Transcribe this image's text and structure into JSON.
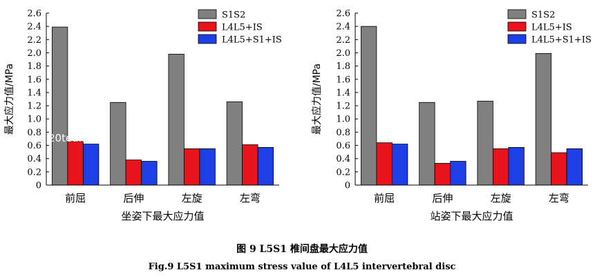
{
  "chart_data": [
    {
      "type": "bar",
      "title": "",
      "xlabel": "坐姿下最大应力值",
      "ylabel": "最大应力值/MPa",
      "categories": [
        "前屈",
        "后伸",
        "左旋",
        "左弯"
      ],
      "ylim": [
        0,
        2.6
      ],
      "yticks": [
        0,
        0.2,
        0.4,
        0.6,
        0.8,
        1.0,
        1.2,
        1.4,
        1.6,
        1.8,
        2.0,
        2.2,
        2.4,
        2.6
      ],
      "ytick_labels": [
        "0",
        "0.2",
        "0.4",
        "0.6",
        "0.8",
        "1.0",
        "1.2",
        "1.4",
        "1.6",
        "1.8",
        "2.0",
        "2.2",
        "2.4",
        "2.6"
      ],
      "legend": "top-right",
      "series": [
        {
          "name": "S1S2",
          "color": "#808080",
          "values": [
            2.39,
            1.25,
            1.98,
            1.26
          ]
        },
        {
          "name": "L4L5+IS",
          "color": "#e8141c",
          "values": [
            0.66,
            0.38,
            0.55,
            0.61
          ]
        },
        {
          "name": "L4L5+S1+IS",
          "color": "#1e3ee6",
          "values": [
            0.62,
            0.36,
            0.55,
            0.57
          ]
        }
      ]
    },
    {
      "type": "bar",
      "title": "",
      "xlabel": "站姿下最大应力值",
      "ylabel": "最大应力值/MPa",
      "categories": [
        "前屈",
        "后伸",
        "左旋",
        "左弯"
      ],
      "ylim": [
        0,
        2.6
      ],
      "yticks": [
        0,
        0.2,
        0.4,
        0.6,
        0.8,
        1.0,
        1.2,
        1.4,
        1.6,
        1.8,
        2.0,
        2.2,
        2.4,
        2.6
      ],
      "ytick_labels": [
        "0",
        "0.2",
        "0.4",
        "0.6",
        "0.8",
        "1.0",
        "1.2",
        "1.4",
        "1.6",
        "1.8",
        "2.0",
        "2.2",
        "2.4",
        "2.6"
      ],
      "legend": "top-right",
      "series": [
        {
          "name": "S1S2",
          "color": "#808080",
          "values": [
            2.4,
            1.25,
            1.27,
            1.99
          ]
        },
        {
          "name": "L4L5+IS",
          "color": "#e8141c",
          "values": [
            0.64,
            0.33,
            0.55,
            0.49
          ]
        },
        {
          "name": "L4L5+S1+IS",
          "color": "#1e3ee6",
          "values": [
            0.62,
            0.36,
            0.57,
            0.55
          ]
        }
      ]
    }
  ],
  "caption": {
    "cn": "图 9    L5S1 椎间盘最大应力值",
    "en": "Fig.9   L5S1 maximum stress value of L4L5 intervertebral disc"
  },
  "watermark": "20tea...n"
}
